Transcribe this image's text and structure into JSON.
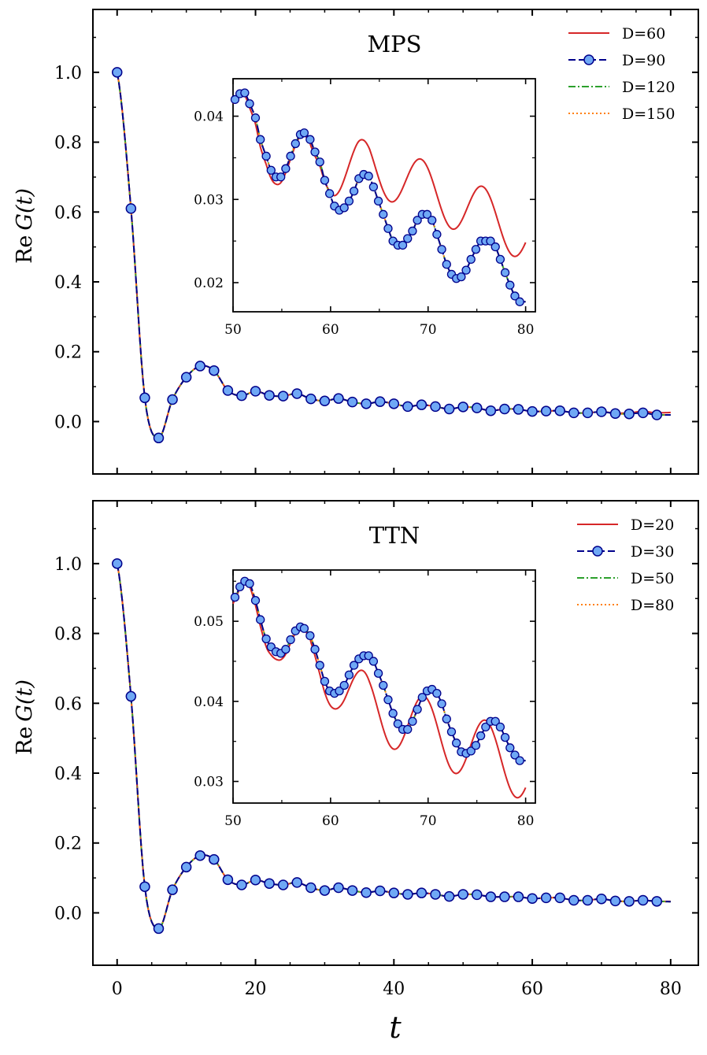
{
  "figure": {
    "xlabel": "t",
    "ylabel": "Re G(t)",
    "ylabel_roman": "Re",
    "ylabel_italic": "G",
    "ylabel_paren": "(t)"
  },
  "colors": {
    "D_small": "#d62728",
    "D_mid": "#00008b",
    "marker_fill": "#6fa8f5",
    "D_large": "#2ca02c",
    "D_xl": "#ff7f0e"
  },
  "chart_data": [
    {
      "type": "line",
      "title": "MPS",
      "xlabel": "t",
      "ylabel": "Re G(t)",
      "xlim": [
        -3.5,
        84
      ],
      "ylim": [
        -0.15,
        1.18
      ],
      "xticks": [
        0,
        20,
        40,
        60,
        80
      ],
      "xtick_labels": [
        "0",
        "20",
        "40",
        "60",
        "80"
      ],
      "yticks": [
        0.0,
        0.2,
        0.4,
        0.6,
        0.8,
        1.0
      ],
      "ytick_labels": [
        "0.0",
        "0.2",
        "0.4",
        "0.6",
        "0.8",
        "1.0"
      ],
      "legend_loc": "top-right",
      "series": [
        {
          "name": "D=60",
          "style": "solid",
          "color": "#d62728",
          "markers": false
        },
        {
          "name": "D=90",
          "style": "dashed",
          "color": "#00008b",
          "markers": true
        },
        {
          "name": "D=120",
          "style": "dashdot",
          "color": "#2ca02c",
          "markers": false
        },
        {
          "name": "D=150",
          "style": "dotted",
          "color": "#ff7f0e",
          "markers": false
        }
      ],
      "x": [
        0,
        2,
        4,
        6,
        8,
        10,
        12,
        14,
        16,
        18,
        20,
        22,
        24,
        26,
        28,
        30,
        32,
        34,
        36,
        38,
        40,
        42,
        44,
        46,
        48,
        50,
        52,
        54,
        56,
        58,
        60,
        62,
        64,
        66,
        68,
        70,
        72,
        74,
        76,
        78
      ],
      "values": [
        1.0,
        0.61,
        0.068,
        -0.047,
        0.063,
        0.127,
        0.159,
        0.146,
        0.089,
        0.074,
        0.087,
        0.075,
        0.073,
        0.08,
        0.065,
        0.059,
        0.066,
        0.056,
        0.051,
        0.057,
        0.051,
        0.043,
        0.048,
        0.043,
        0.036,
        0.042,
        0.039,
        0.031,
        0.036,
        0.035,
        0.029,
        0.03,
        0.031,
        0.025,
        0.025,
        0.028,
        0.023,
        0.022,
        0.025,
        0.019
      ],
      "end_value_Dmin": 0.026,
      "end_value_others": 0.019,
      "inset": {
        "xlim": [
          50,
          81
        ],
        "ylim": [
          0.0165,
          0.0445
        ],
        "xticks": [
          50,
          60,
          70,
          80
        ],
        "xtick_labels": [
          "50",
          "60",
          "70",
          "80"
        ],
        "yticks": [
          0.02,
          0.03,
          0.04
        ],
        "ytick_labels": [
          "0.02",
          "0.03",
          "0.04"
        ],
        "x": [
          50.2,
          50.7,
          51.2,
          51.7,
          52.3,
          52.8,
          53.4,
          53.9,
          54.4,
          54.9,
          55.4,
          55.9,
          56.4,
          56.9,
          57.3,
          57.9,
          58.4,
          58.9,
          59.4,
          59.9,
          60.4,
          60.9,
          61.4,
          61.9,
          62.4,
          62.9,
          63.4,
          63.9,
          64.4,
          64.9,
          65.4,
          65.9,
          66.4,
          66.9,
          67.4,
          67.9,
          68.4,
          68.9,
          69.4,
          69.9,
          70.4,
          70.9,
          71.4,
          71.9,
          72.4,
          72.9,
          73.4,
          73.9,
          74.4,
          74.9,
          75.4,
          75.9,
          76.4,
          76.9,
          77.4,
          77.9,
          78.4,
          78.9,
          79.4
        ],
        "values": [
          0.042,
          0.0427,
          0.0428,
          0.0415,
          0.0398,
          0.0372,
          0.0352,
          0.0335,
          0.0327,
          0.0327,
          0.0337,
          0.0352,
          0.0367,
          0.0378,
          0.038,
          0.0372,
          0.0357,
          0.0345,
          0.0323,
          0.0307,
          0.0292,
          0.0287,
          0.029,
          0.0298,
          0.031,
          0.0325,
          0.033,
          0.0328,
          0.0315,
          0.0298,
          0.0282,
          0.0265,
          0.025,
          0.0245,
          0.0245,
          0.0253,
          0.0262,
          0.0275,
          0.0282,
          0.0282,
          0.0275,
          0.0258,
          0.024,
          0.0222,
          0.021,
          0.0205,
          0.0207,
          0.0215,
          0.0228,
          0.024,
          0.025,
          0.025,
          0.025,
          0.0243,
          0.0228,
          0.0212,
          0.0197,
          0.0184,
          0.0177
        ],
        "Dmin_curve": {
          "base_at_50": 0.0415,
          "slope": -0.00052,
          "amplitude": 0.0048,
          "period": 6.3,
          "phase_peak_t": 56.7
        }
      }
    },
    {
      "type": "line",
      "title": "TTN",
      "xlabel": "t",
      "ylabel": "Re G(t)",
      "xlim": [
        -3.5,
        84
      ],
      "ylim": [
        -0.15,
        1.18
      ],
      "xticks": [
        0,
        20,
        40,
        60,
        80
      ],
      "xtick_labels": [
        "0",
        "20",
        "40",
        "60",
        "80"
      ],
      "yticks": [
        0.0,
        0.2,
        0.4,
        0.6,
        0.8,
        1.0
      ],
      "ytick_labels": [
        "0.0",
        "0.2",
        "0.4",
        "0.6",
        "0.8",
        "1.0"
      ],
      "legend_loc": "top-right",
      "series": [
        {
          "name": "D=20",
          "style": "solid",
          "color": "#d62728",
          "markers": false
        },
        {
          "name": "D=30",
          "style": "dashed",
          "color": "#00008b",
          "markers": true
        },
        {
          "name": "D=50",
          "style": "dashdot",
          "color": "#2ca02c",
          "markers": false
        },
        {
          "name": "D=80",
          "style": "dotted",
          "color": "#ff7f0e",
          "markers": false
        }
      ],
      "x": [
        0,
        2,
        4,
        6,
        8,
        10,
        12,
        14,
        16,
        18,
        20,
        22,
        24,
        26,
        28,
        30,
        32,
        34,
        36,
        38,
        40,
        42,
        44,
        46,
        48,
        50,
        52,
        54,
        56,
        58,
        60,
        62,
        64,
        66,
        68,
        70,
        72,
        74,
        76,
        78
      ],
      "values": [
        1.0,
        0.62,
        0.075,
        -0.045,
        0.066,
        0.131,
        0.164,
        0.153,
        0.095,
        0.08,
        0.094,
        0.084,
        0.08,
        0.087,
        0.072,
        0.064,
        0.072,
        0.064,
        0.058,
        0.063,
        0.057,
        0.053,
        0.057,
        0.053,
        0.047,
        0.053,
        0.052,
        0.046,
        0.046,
        0.046,
        0.041,
        0.043,
        0.043,
        0.036,
        0.036,
        0.04,
        0.034,
        0.033,
        0.036,
        0.033
      ],
      "end_value_Dmin": 0.032,
      "end_value_others": 0.032,
      "inset": {
        "xlim": [
          50,
          81
        ],
        "ylim": [
          0.0273,
          0.0564
        ],
        "xticks": [
          50,
          60,
          70,
          80
        ],
        "xtick_labels": [
          "50",
          "60",
          "70",
          "80"
        ],
        "yticks": [
          0.03,
          0.04,
          0.05
        ],
        "ytick_labels": [
          "0.03",
          "0.04",
          "0.05"
        ],
        "x": [
          50.2,
          50.7,
          51.2,
          51.7,
          52.3,
          52.8,
          53.4,
          53.9,
          54.4,
          54.9,
          55.4,
          55.9,
          56.4,
          56.9,
          57.3,
          57.9,
          58.4,
          58.9,
          59.4,
          59.9,
          60.4,
          60.9,
          61.4,
          61.9,
          62.4,
          62.9,
          63.4,
          63.9,
          64.4,
          64.9,
          65.4,
          65.9,
          66.4,
          66.9,
          67.4,
          67.9,
          68.4,
          68.9,
          69.4,
          69.9,
          70.4,
          70.9,
          71.4,
          71.9,
          72.4,
          72.9,
          73.4,
          73.9,
          74.4,
          74.9,
          75.4,
          75.9,
          76.4,
          76.9,
          77.4,
          77.9,
          78.4,
          78.9,
          79.4
        ],
        "values": [
          0.053,
          0.0543,
          0.055,
          0.0547,
          0.0526,
          0.0502,
          0.0478,
          0.0468,
          0.0462,
          0.046,
          0.0465,
          0.0477,
          0.0488,
          0.0493,
          0.0491,
          0.0482,
          0.0465,
          0.0445,
          0.0425,
          0.0413,
          0.041,
          0.0413,
          0.042,
          0.0433,
          0.0445,
          0.0453,
          0.0457,
          0.0457,
          0.045,
          0.0435,
          0.042,
          0.0402,
          0.0385,
          0.0372,
          0.0365,
          0.0365,
          0.0375,
          0.039,
          0.0405,
          0.0413,
          0.0415,
          0.041,
          0.0397,
          0.0378,
          0.0362,
          0.0348,
          0.0337,
          0.0335,
          0.0338,
          0.0345,
          0.0357,
          0.0368,
          0.0375,
          0.0375,
          0.0368,
          0.0355,
          0.0342,
          0.0333,
          0.0326
        ],
        "Dmin_curve": {
          "base_at_50": 0.046,
          "slope": -0.00048,
          "amplitude": 0.0058,
          "period": 6.3,
          "phase_peak_t": 57.0
        }
      }
    }
  ]
}
